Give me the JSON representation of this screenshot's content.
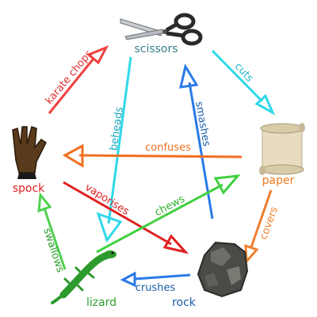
{
  "nodes": {
    "scissors": {
      "label": "scissors",
      "color": "#3a7f8c",
      "icon": "scissors-icon"
    },
    "paper": {
      "label": "paper",
      "color": "#f07820",
      "icon": "paper-scroll-icon"
    },
    "rock": {
      "label": "rock",
      "color": "#1a5fa8",
      "icon": "rock-icon"
    },
    "lizard": {
      "label": "lizard",
      "color": "#2e9e2e",
      "icon": "lizard-icon"
    },
    "spock": {
      "label": "spock",
      "color": "#e02020",
      "icon": "vulcan-salute-hand-icon"
    }
  },
  "edges": [
    {
      "id": "karate-chops",
      "label": "karate chops",
      "color": "#f04040",
      "from": "spock",
      "to": "scissors"
    },
    {
      "id": "cuts",
      "label": "cuts",
      "color": "#30d8e8",
      "from": "scissors",
      "to": "paper"
    },
    {
      "id": "covers",
      "label": "covers",
      "color": "#f08030",
      "from": "paper",
      "to": "rock"
    },
    {
      "id": "crushes",
      "label": "crushes",
      "color": "#2a7ae8",
      "from": "rock",
      "to": "lizard"
    },
    {
      "id": "swallows",
      "label": "swallows",
      "color": "#50d050",
      "from": "lizard",
      "to": "spock"
    },
    {
      "id": "beheads",
      "label": "beheads",
      "color": "#30d8e8",
      "from": "scissors",
      "to": "lizard"
    },
    {
      "id": "smashes",
      "label": "smashes",
      "color": "#2a7ae8",
      "from": "rock",
      "to": "scissors"
    },
    {
      "id": "confuses",
      "label": "confuses",
      "color": "#f07020",
      "from": "paper",
      "to": "spock"
    },
    {
      "id": "vaporises",
      "label": "vaporises",
      "color": "#e02020",
      "from": "spock",
      "to": "rock"
    },
    {
      "id": "chews",
      "label": "chews",
      "color": "#40d040",
      "from": "lizard",
      "to": "paper"
    }
  ]
}
